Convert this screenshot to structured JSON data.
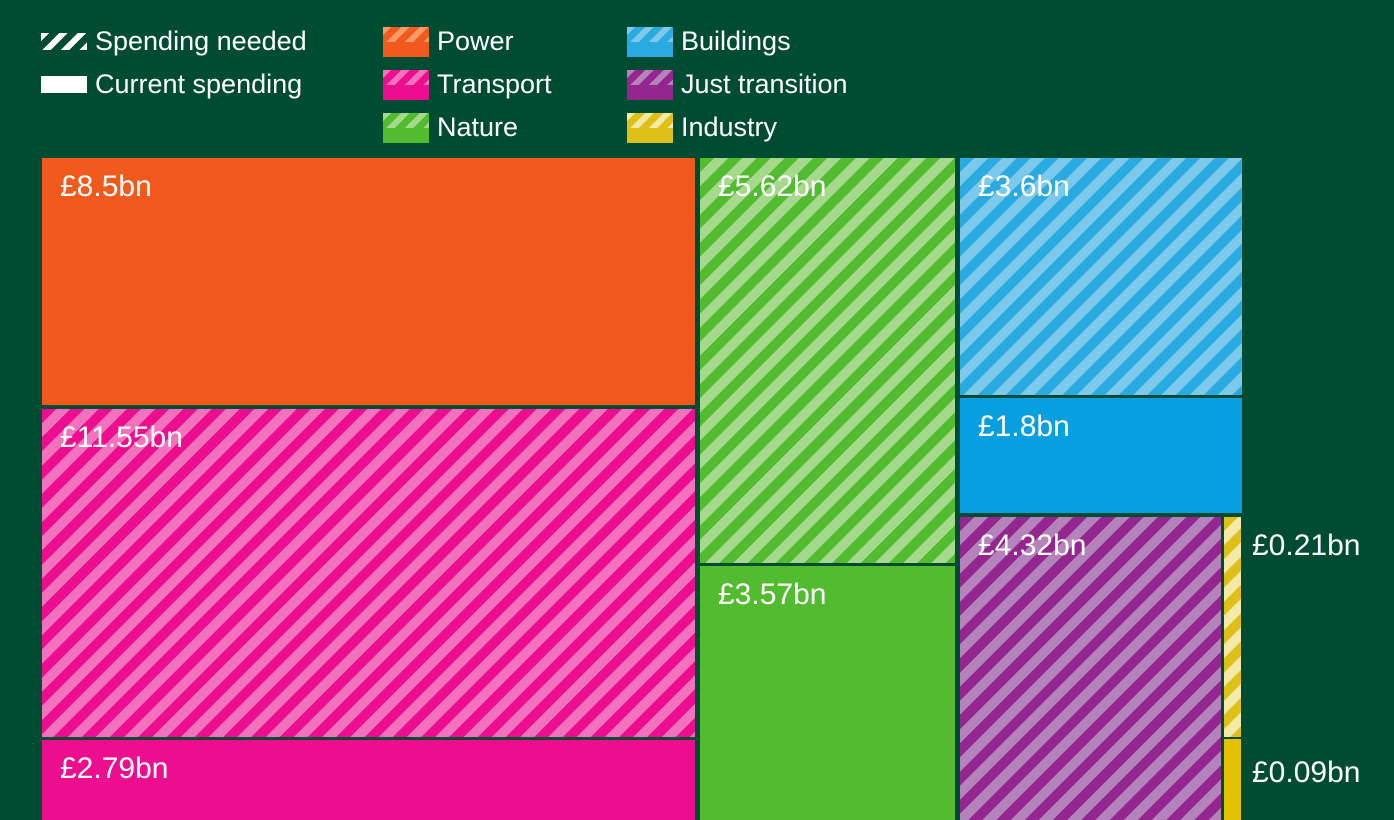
{
  "colors": {
    "bg": "#004c33",
    "text": "#ffffff",
    "power-base": "#f1591d",
    "power-stripe": "#f79a68",
    "transport-base": "#ec0e8e",
    "transport-stripe": "#f272bd",
    "nature-base": "#53bb2f",
    "nature-stripe": "#a5d98b",
    "buildings-base": "#29aae1",
    "buildings-stripe": "#7cc9ec",
    "buildings-solid": "#089fe0",
    "just-transition-base": "#93278f",
    "just-transition-stripe": "#b583bb",
    "industry-base": "#dfc019",
    "industry-stripe": "#f4e9a6",
    "industry-solid": "#e2c201"
  },
  "legend": {
    "pattern_items": [
      {
        "label": "Spending needed",
        "pattern": "hatched"
      },
      {
        "label": "Current spending",
        "pattern": "solid"
      }
    ],
    "categories": [
      {
        "name": "Power"
      },
      {
        "name": "Transport"
      },
      {
        "name": "Nature"
      },
      {
        "name": "Buildings"
      },
      {
        "name": "Just transition"
      },
      {
        "name": "Industry"
      }
    ]
  },
  "chart_data": {
    "type": "treemap",
    "unit": "billions GBP",
    "legend_position": "top",
    "pattern_encoding": {
      "hatched": "Spending needed",
      "solid": "Current spending"
    },
    "blocks": [
      {
        "category": "Power",
        "kind": "current-spending",
        "value_bn": 8.5,
        "label": "£8.5bn"
      },
      {
        "category": "Transport",
        "kind": "spending-needed",
        "value_bn": 11.55,
        "label": "£11.55bn"
      },
      {
        "category": "Transport",
        "kind": "current-spending",
        "value_bn": 2.79,
        "label": "£2.79bn"
      },
      {
        "category": "Nature",
        "kind": "spending-needed",
        "value_bn": 5.62,
        "label": "£5.62bn"
      },
      {
        "category": "Nature",
        "kind": "current-spending",
        "value_bn": 3.57,
        "label": "£3.57bn"
      },
      {
        "category": "Buildings",
        "kind": "spending-needed",
        "value_bn": 3.6,
        "label": "£3.6bn"
      },
      {
        "category": "Buildings",
        "kind": "current-spending",
        "value_bn": 1.8,
        "label": "£1.8bn"
      },
      {
        "category": "Just transition",
        "kind": "spending-needed",
        "value_bn": 4.32,
        "label": "£4.32bn"
      },
      {
        "category": "Industry",
        "kind": "spending-needed",
        "value_bn": 0.21,
        "label": "£0.21bn"
      },
      {
        "category": "Industry",
        "kind": "current-spending",
        "value_bn": 0.09,
        "label": "£0.09bn"
      }
    ]
  }
}
